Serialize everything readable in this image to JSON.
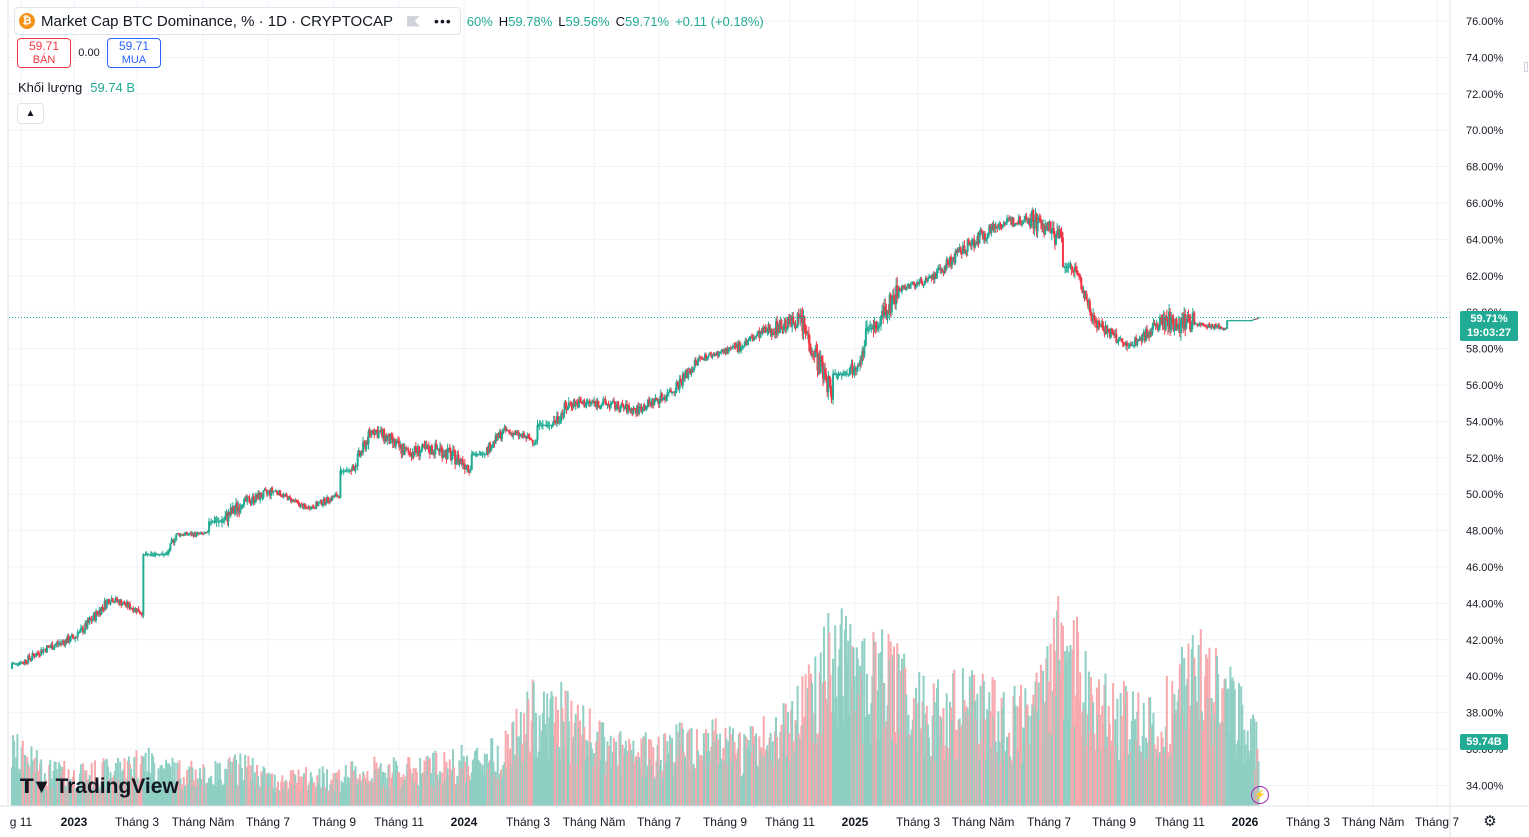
{
  "header": {
    "symbol_title": "Market Cap BTC Dominance, % · 1D · CRYPTOCAP",
    "coin_icon": "bitcoin-icon",
    "ohlc": {
      "open_partial": "60%",
      "h_label": "H",
      "h_value": "59.78%",
      "l_label": "L",
      "l_value": "59.56%",
      "c_label": "C",
      "c_value": "59.71%",
      "change": "+0.11 (+0.18%)"
    }
  },
  "trade": {
    "sell_price": "59.71",
    "sell_label": "BÁN",
    "spread": "0.00",
    "buy_price": "59.71",
    "buy_label": "MUA"
  },
  "volume": {
    "label": "Khối lượng",
    "value": "59.74 B"
  },
  "price_tag": {
    "price": "59.71%",
    "countdown": "19:03:27"
  },
  "volume_tag": "59.74B",
  "branding": "TradingView",
  "colors": {
    "up": "#22ab94",
    "down": "#f23645",
    "up_volume": "#8fcfc4",
    "down_volume": "#f7a9ad",
    "grid": "#f0f3fa"
  },
  "chart_data": {
    "type": "candlestick",
    "title": "Market Cap BTC Dominance, %",
    "interval": "1D",
    "y_axis": {
      "ticks": [
        "76.00%",
        "74.00%",
        "72.00%",
        "70.00%",
        "68.00%",
        "66.00%",
        "64.00%",
        "62.00%",
        "60.00%",
        "58.00%",
        "56.00%",
        "54.00%",
        "52.00%",
        "50.00%",
        "48.00%",
        "46.00%",
        "44.00%",
        "42.00%",
        "40.00%",
        "38.00%",
        "36.00%",
        "34.00%"
      ],
      "range": [
        33.5,
        76.5
      ],
      "unit": "%"
    },
    "x_axis": {
      "ticks": [
        "g 11",
        "2023",
        "Tháng 3",
        "Tháng Năm",
        "Tháng 7",
        "Tháng 9",
        "Tháng 11",
        "2024",
        "Tháng 3",
        "Tháng Năm",
        "Tháng 7",
        "Tháng 9",
        "Tháng 11",
        "2025",
        "Tháng 3",
        "Tháng Năm",
        "Tháng 7",
        "Tháng 9",
        "Tháng 11",
        "2026",
        "Tháng 3",
        "Tháng Năm",
        "Tháng 7"
      ],
      "bold_ticks": [
        "2023",
        "2024",
        "2025",
        "2026"
      ]
    },
    "series": [
      {
        "name": "BTC Dominance",
        "x": [
          "2022-11",
          "2022-12",
          "2023-01",
          "2023-02",
          "2023-03",
          "2023-04",
          "2023-05",
          "2023-06",
          "2023-07",
          "2023-08",
          "2023-09",
          "2023-10",
          "2023-11",
          "2023-12",
          "2024-01",
          "2024-02",
          "2024-03",
          "2024-04",
          "2024-05",
          "2024-06",
          "2024-07",
          "2024-08",
          "2024-09",
          "2024-10",
          "2024-11",
          "2024-12",
          "2025-01",
          "2025-02",
          "2025-03",
          "2025-04",
          "2025-05",
          "2025-06",
          "2025-07",
          "2025-08",
          "2025-09",
          "2025-10",
          "2025-11",
          "2025-12",
          "2026-01"
        ],
        "values": [
          40.4,
          41.5,
          42.2,
          44.3,
          43.5,
          47.8,
          47.8,
          49.5,
          50.2,
          49.2,
          50.0,
          53.6,
          52.3,
          52.5,
          51.5,
          53.5,
          52.9,
          55.0,
          55.0,
          54.6,
          55.5,
          57.5,
          58.0,
          59.0,
          59.6,
          55.5,
          58.0,
          61.3,
          61.8,
          63.5,
          64.8,
          65.2,
          64.0,
          59.5,
          58.0,
          59.5,
          59.4,
          59.1,
          59.71
        ],
        "high": [
          41.0,
          42.6,
          43.0,
          45.0,
          44.7,
          48.8,
          48.4,
          52.2,
          51.8,
          50.3,
          50.8,
          54.6,
          55.3,
          54.2,
          54.6,
          54.6,
          54.1,
          57.2,
          56.5,
          56.3,
          56.9,
          58.6,
          59.0,
          60.4,
          61.4,
          60.2,
          60.6,
          64.5,
          62.8,
          64.8,
          65.4,
          65.9,
          66.1,
          62.5,
          60.4,
          61.2,
          63.5,
          60.1,
          59.78
        ],
        "low": [
          39.7,
          40.7,
          40.8,
          42.4,
          42.9,
          46.7,
          47.2,
          48.5,
          49.4,
          48.9,
          49.2,
          51.3,
          51.9,
          51.0,
          51.0,
          52.2,
          52.1,
          53.8,
          53.8,
          53.8,
          54.3,
          55.6,
          57.4,
          57.6,
          57.8,
          54.6,
          56.6,
          59.1,
          60.9,
          61.8,
          62.0,
          63.3,
          61.0,
          58.2,
          57.2,
          58.2,
          58.1,
          58.8,
          59.56
        ],
        "volume": [
          0.55,
          0.35,
          0.3,
          0.35,
          0.45,
          0.35,
          0.3,
          0.4,
          0.25,
          0.28,
          0.3,
          0.35,
          0.35,
          0.4,
          0.45,
          0.55,
          0.95,
          0.85,
          0.6,
          0.5,
          0.6,
          0.7,
          0.55,
          0.65,
          1.0,
          1.45,
          1.3,
          1.2,
          0.9,
          1.0,
          0.9,
          0.85,
          1.6,
          1.0,
          0.9,
          0.85,
          1.3,
          1.1,
          0.6
        ]
      }
    ],
    "last_price": 59.71,
    "last_volume_billion": 59.74,
    "grid": true
  }
}
